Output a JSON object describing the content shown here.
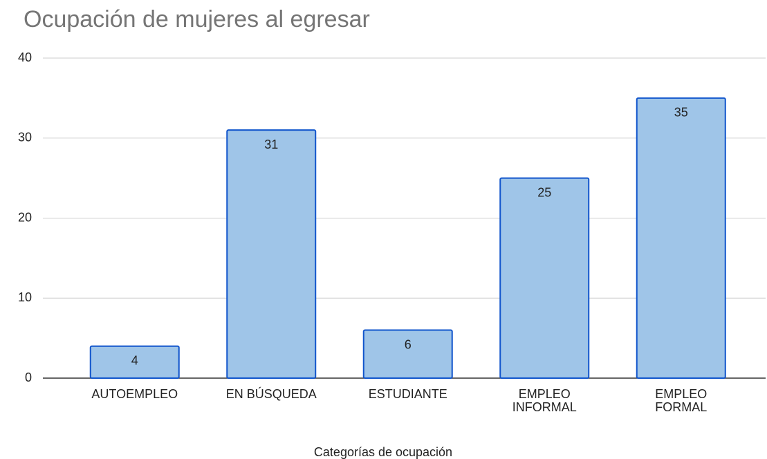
{
  "chart_data": {
    "type": "bar",
    "title": "Ocupación de mujeres al egresar",
    "x_label": "Categorías de ocupación",
    "categories": [
      "AUTOEMPLEO",
      "EN BÚSQUEDA",
      "ESTUDIANTE",
      "EMPLEO\nINFORMAL",
      "EMPLEO\nFORMAL"
    ],
    "values": [
      4,
      31,
      6,
      25,
      35
    ],
    "color": "#9fc5e8",
    "edge_color": "#1155cc",
    "ylim": [
      0,
      40
    ],
    "yticks": [
      0,
      10,
      20,
      30,
      40
    ],
    "grid": true
  }
}
